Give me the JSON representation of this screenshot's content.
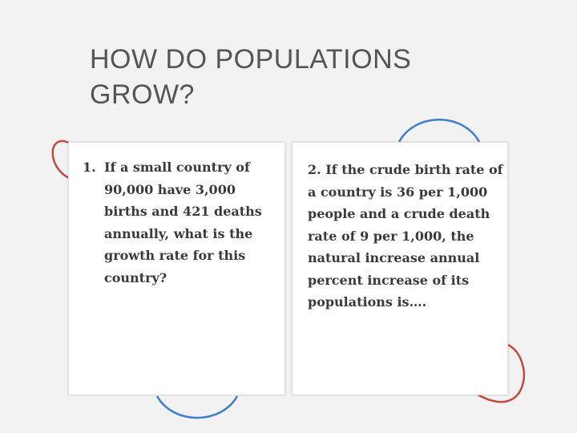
{
  "slide": {
    "title_line1": "HOW DO POPULATIONS",
    "title_line2": "GROW?"
  },
  "questions": [
    {
      "number": "1.",
      "text": "If a small country of 90,000 have 3,000 births and 421 deaths annually, what is the growth rate for this country?"
    },
    {
      "text": "2.  If the crude birth rate of a country is 36 per 1,000 people and a crude death rate of 9 per 1,000, the natural increase annual percent increase of its populations is…."
    }
  ],
  "colors": {
    "background": "#f2f2f2",
    "title": "#555555",
    "card": "#ffffff",
    "accent_red": "#c9473e",
    "accent_blue": "#3a7fd0"
  }
}
